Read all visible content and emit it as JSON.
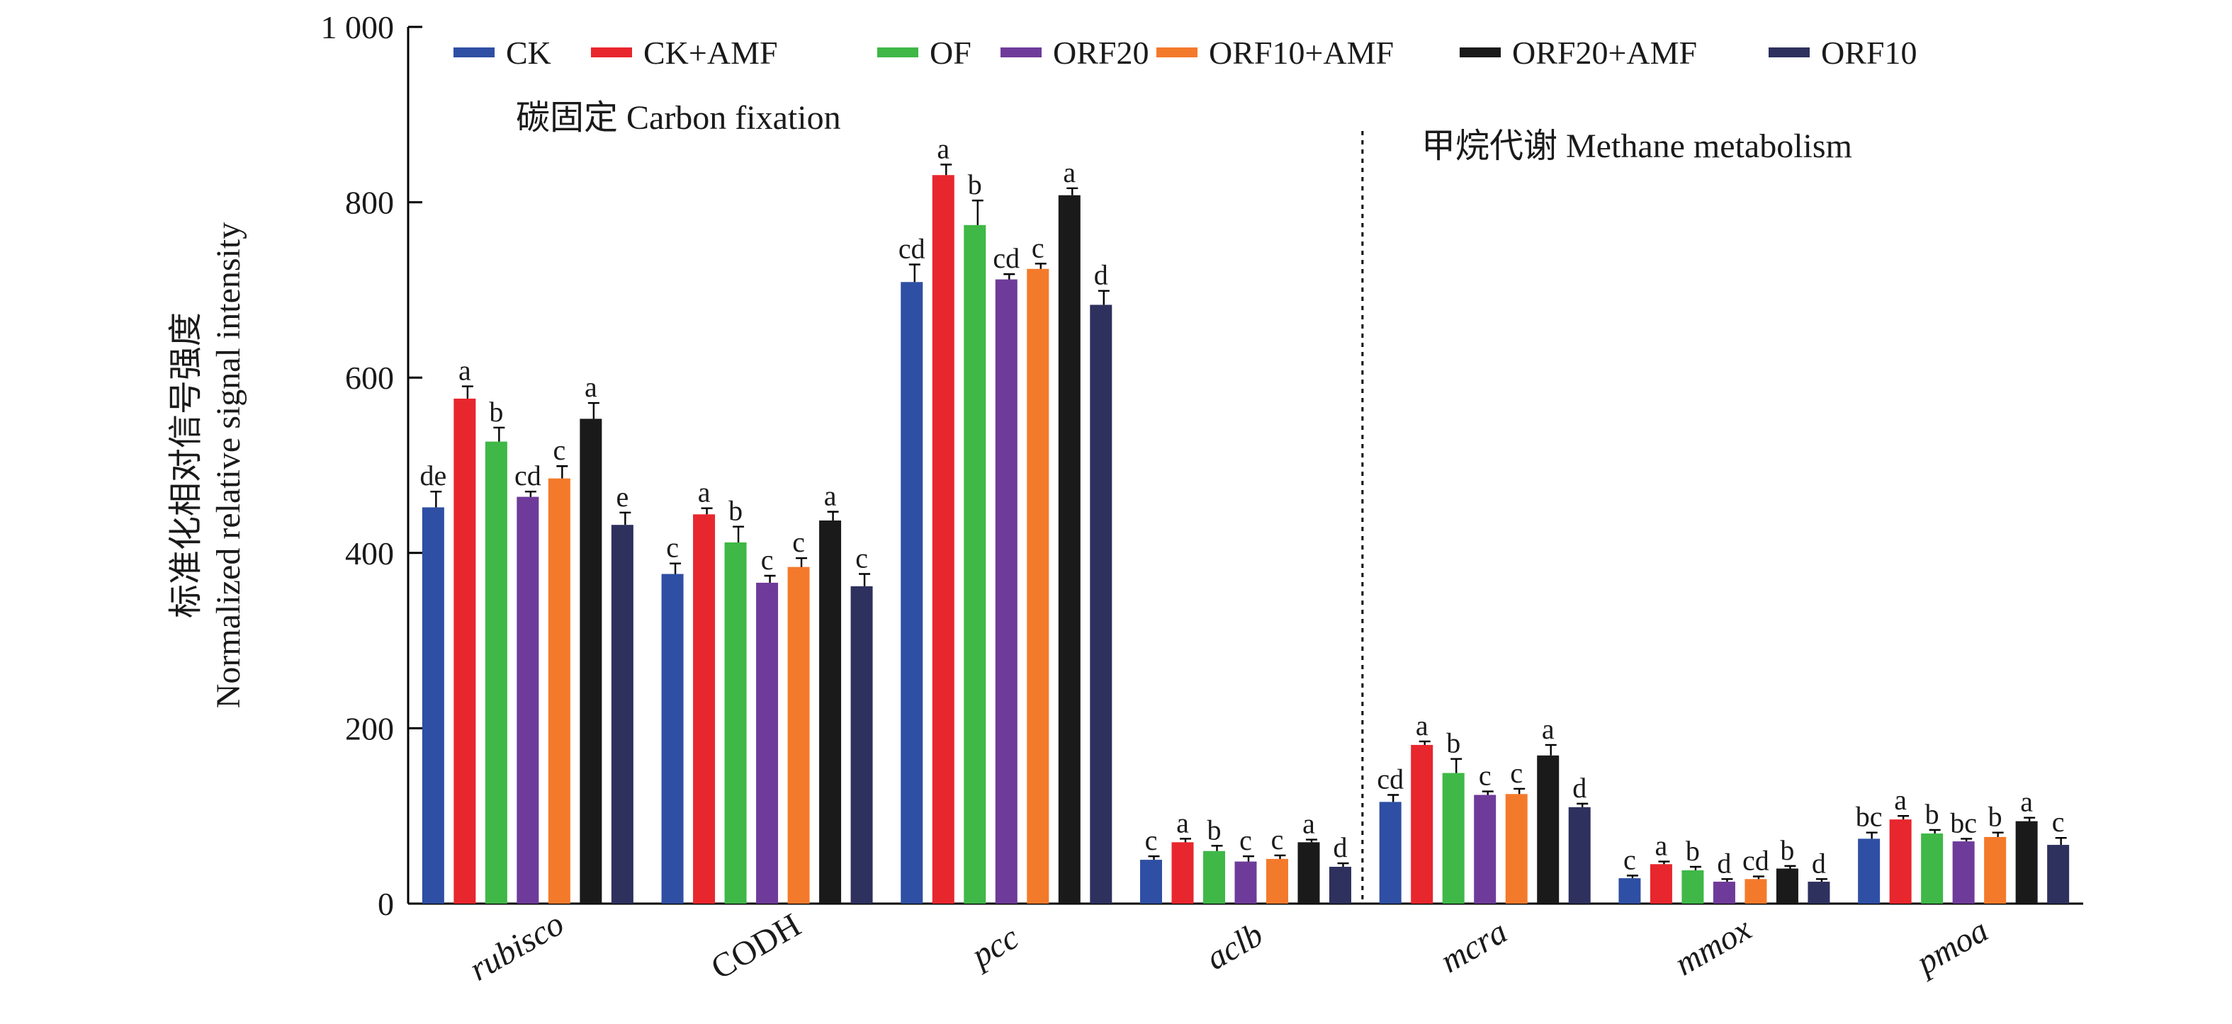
{
  "chart_data": {
    "type": "bar",
    "ylabel_lines": [
      "标准化相对信号强度",
      "Normalized relative signal intensity"
    ],
    "ylim": [
      0,
      1000
    ],
    "yticks": [
      {
        "value": 0,
        "label": "0"
      },
      {
        "value": 200,
        "label": "200"
      },
      {
        "value": 400,
        "label": "400"
      },
      {
        "value": 600,
        "label": "600"
      },
      {
        "value": 800,
        "label": "800"
      },
      {
        "value": 1000,
        "label": "1 000"
      }
    ],
    "categories": [
      "rubisco",
      "CODH",
      "pcc",
      "aclb",
      "mcra",
      "mmox",
      "pmoa"
    ],
    "category_italic": [
      true,
      false,
      true,
      true,
      true,
      true,
      true
    ],
    "legend_position": "top",
    "sections": [
      {
        "label": "碳固定 Carbon fixation",
        "categories": [
          "rubisco",
          "CODH",
          "pcc",
          "aclb"
        ]
      },
      {
        "label": "甲烷代谢 Methane metabolism",
        "categories": [
          "mcra",
          "mmox",
          "pmoa"
        ]
      }
    ],
    "series": [
      {
        "name": "CK",
        "color": "#2e4fa3",
        "values": [
          452,
          376,
          709,
          50,
          116,
          29,
          74
        ],
        "errors": [
          18,
          12,
          20,
          4,
          8,
          3,
          7
        ],
        "letters": [
          "de",
          "c",
          "cd",
          "c",
          "cd",
          "c",
          "bc"
        ]
      },
      {
        "name": "CK+AMF",
        "color": "#e8262d",
        "values": [
          576,
          444,
          831,
          70,
          181,
          45,
          96
        ],
        "errors": [
          14,
          7,
          12,
          4,
          4,
          3,
          4
        ],
        "letters": [
          "a",
          "a",
          "a",
          "a",
          "a",
          "a",
          "a"
        ]
      },
      {
        "name": "OF",
        "color": "#3fb847",
        "values": [
          527,
          412,
          774,
          60,
          149,
          38,
          80
        ],
        "errors": [
          16,
          18,
          28,
          6,
          16,
          4,
          4
        ],
        "letters": [
          "b",
          "b",
          "b",
          "b",
          "b",
          "b",
          "b"
        ]
      },
      {
        "name": "ORF20",
        "color": "#6f3b9a",
        "values": [
          464,
          366,
          712,
          48,
          124,
          25,
          71
        ],
        "errors": [
          6,
          8,
          6,
          6,
          4,
          3,
          3
        ],
        "letters": [
          "cd",
          "c",
          "cd",
          "c",
          "c",
          "d",
          "bc"
        ]
      },
      {
        "name": "ORF10+AMF",
        "color": "#f47a2b",
        "values": [
          485,
          384,
          724,
          51,
          125,
          28,
          76
        ],
        "errors": [
          14,
          10,
          6,
          4,
          6,
          3,
          5
        ],
        "letters": [
          "c",
          "c",
          "c",
          "c",
          "c",
          "cd",
          "b"
        ]
      },
      {
        "name": "ORF20+AMF",
        "color": "#1a1a1a",
        "values": [
          553,
          437,
          808,
          70,
          169,
          40,
          94
        ],
        "errors": [
          18,
          10,
          8,
          3,
          12,
          3,
          4
        ],
        "letters": [
          "a",
          "a",
          "a",
          "a",
          "a",
          "b",
          "a"
        ]
      },
      {
        "name": "ORF10",
        "color": "#2e315e",
        "values": [
          432,
          362,
          683,
          42,
          110,
          25,
          67
        ],
        "errors": [
          14,
          14,
          16,
          4,
          4,
          3,
          8
        ],
        "letters": [
          "e",
          "c",
          "d",
          "d",
          "d",
          "d",
          "c"
        ]
      }
    ]
  }
}
